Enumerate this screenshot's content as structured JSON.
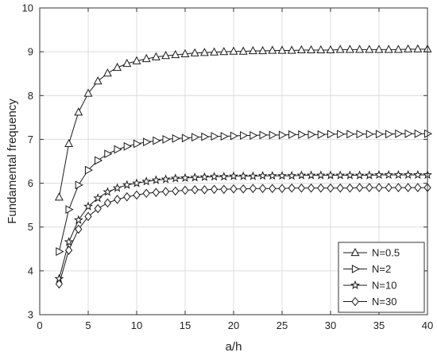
{
  "chart_data": {
    "type": "line",
    "title": "",
    "xlabel": "a/h",
    "ylabel": "Fundamental frequency",
    "xlim": [
      0,
      40
    ],
    "ylim": [
      3,
      10
    ],
    "xticks": [
      0,
      5,
      10,
      15,
      20,
      25,
      30,
      35,
      40
    ],
    "yticks": [
      3,
      4,
      5,
      6,
      7,
      8,
      9,
      10
    ],
    "grid": true,
    "legend_position": "bottom-right",
    "x": [
      2,
      3,
      4,
      5,
      6,
      7,
      8,
      9,
      10,
      11,
      12,
      13,
      14,
      15,
      16,
      17,
      18,
      19,
      20,
      21,
      22,
      23,
      24,
      25,
      26,
      27,
      28,
      29,
      30,
      31,
      32,
      33,
      34,
      35,
      36,
      37,
      38,
      39,
      40
    ],
    "series": [
      {
        "name": "N=0.5",
        "marker": "triangle-up",
        "values": [
          5.68,
          6.9,
          7.62,
          8.05,
          8.33,
          8.51,
          8.64,
          8.73,
          8.79,
          8.84,
          8.88,
          8.91,
          8.93,
          8.95,
          8.97,
          8.98,
          8.99,
          9.0,
          9.01,
          9.01,
          9.02,
          9.02,
          9.03,
          9.03,
          9.03,
          9.04,
          9.04,
          9.04,
          9.04,
          9.05,
          9.05,
          9.05,
          9.05,
          9.05,
          9.05,
          9.05,
          9.06,
          9.06,
          9.06
        ]
      },
      {
        "name": "N=2",
        "marker": "triangle-right",
        "values": [
          4.44,
          5.4,
          5.96,
          6.3,
          6.52,
          6.67,
          6.77,
          6.84,
          6.9,
          6.94,
          6.97,
          7.0,
          7.02,
          7.03,
          7.05,
          7.06,
          7.07,
          7.07,
          7.08,
          7.09,
          7.09,
          7.1,
          7.1,
          7.1,
          7.11,
          7.11,
          7.11,
          7.11,
          7.12,
          7.12,
          7.12,
          7.12,
          7.12,
          7.12,
          7.12,
          7.13,
          7.13,
          7.13,
          7.13
        ]
      },
      {
        "name": "N=10",
        "marker": "star",
        "values": [
          3.82,
          4.66,
          5.16,
          5.47,
          5.66,
          5.8,
          5.89,
          5.96,
          6.0,
          6.04,
          6.07,
          6.09,
          6.11,
          6.12,
          6.13,
          6.14,
          6.15,
          6.15,
          6.16,
          6.16,
          6.16,
          6.17,
          6.17,
          6.17,
          6.17,
          6.18,
          6.18,
          6.18,
          6.18,
          6.18,
          6.18,
          6.18,
          6.18,
          6.19,
          6.19,
          6.19,
          6.19,
          6.19,
          6.19
        ]
      },
      {
        "name": "N=30",
        "marker": "diamond",
        "values": [
          3.7,
          4.47,
          4.95,
          5.24,
          5.42,
          5.55,
          5.63,
          5.69,
          5.73,
          5.77,
          5.79,
          5.81,
          5.82,
          5.84,
          5.85,
          5.85,
          5.86,
          5.86,
          5.87,
          5.87,
          5.88,
          5.88,
          5.88,
          5.88,
          5.89,
          5.89,
          5.89,
          5.89,
          5.89,
          5.89,
          5.89,
          5.9,
          5.9,
          5.9,
          5.9,
          5.9,
          5.9,
          5.9,
          5.9
        ]
      }
    ]
  }
}
